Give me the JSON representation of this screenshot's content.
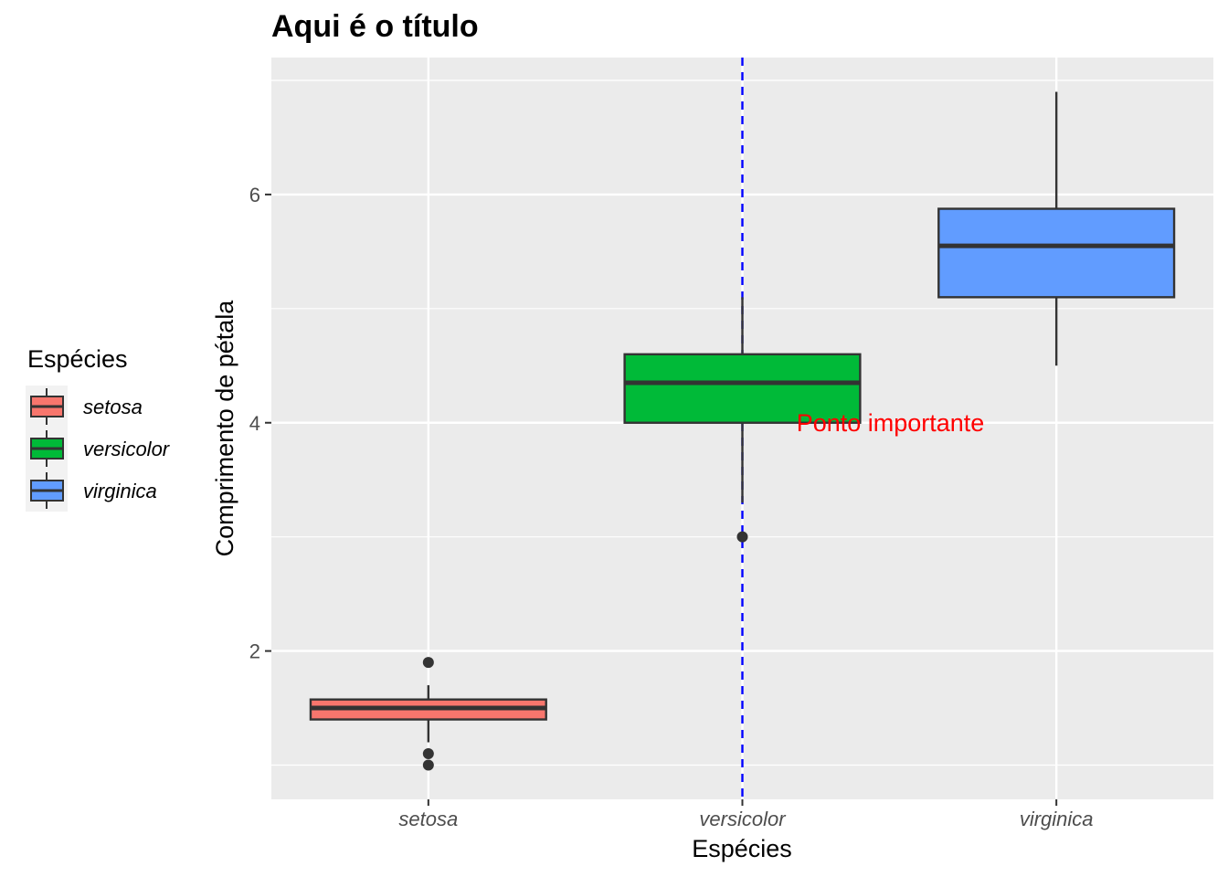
{
  "chart_data": {
    "type": "boxplot",
    "title": "Aqui é o título",
    "xlabel": "Espécies",
    "ylabel": "Comprimento de pétala",
    "categories": [
      "setosa",
      "versicolor",
      "virginica"
    ],
    "colors": [
      "#F8766D",
      "#00BA38",
      "#619CFF"
    ],
    "ylim": [
      0.7,
      7.2
    ],
    "yticks": [
      2,
      4,
      6
    ],
    "grid": true,
    "boxes": [
      {
        "category": "setosa",
        "min": 1.2,
        "q1": 1.4,
        "median": 1.5,
        "q3": 1.575,
        "max": 1.7,
        "outliers": [
          1.0,
          1.1,
          1.9
        ]
      },
      {
        "category": "versicolor",
        "min": 3.3,
        "q1": 4.0,
        "median": 4.35,
        "q3": 4.6,
        "max": 5.1,
        "outliers": [
          3.0
        ]
      },
      {
        "category": "virginica",
        "min": 4.5,
        "q1": 5.1,
        "median": 5.55,
        "q3": 5.875,
        "max": 6.9,
        "outliers": []
      }
    ],
    "vline": {
      "category": "versicolor",
      "color": "#0000FF",
      "linetype": "dashed"
    },
    "annotation": {
      "text": "Ponto importante",
      "x": "versicolor",
      "y": 4.0,
      "color": "#FF0000"
    },
    "legend": {
      "title": "Espécies",
      "position": "left",
      "items": [
        "setosa",
        "versicolor",
        "virginica"
      ]
    },
    "panel_background": "#EBEBEB",
    "grid_color": "#FFFFFF"
  }
}
